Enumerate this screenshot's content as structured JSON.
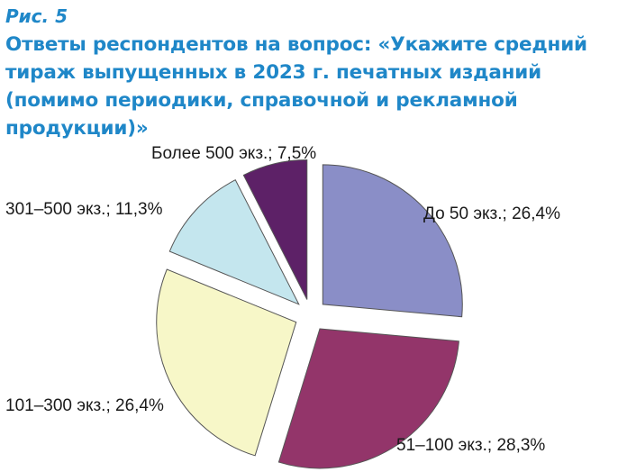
{
  "figure_label": "Рис. 5",
  "title": "Ответы респондентов на вопрос: «Укажите средний тираж выпущенных в 2023 г. печатных изданий (помимо периодики, справочной и рекламной продукции)»",
  "chart_data": {
    "type": "pie",
    "title": "Ответы респондентов на вопрос: «Укажите средний тираж выпущенных в 2023 г. печатных изданий (помимо периодики, справочной и рекламной продукции)»",
    "slices": [
      {
        "category": "До 50 экз.",
        "value": 26.4,
        "label": "До 50 экз.; 26,4%",
        "color": "#8a8ec7"
      },
      {
        "category": "51–100 экз.",
        "value": 28.3,
        "label": "51–100 экз.; 28,3%",
        "color": "#93356a"
      },
      {
        "category": "101–300 экз.",
        "value": 26.4,
        "label": "101–300 экз.; 26,4%",
        "color": "#f7f7c8"
      },
      {
        "category": "301–500 экз.",
        "value": 11.3,
        "label": "301–500 экз.; 11,3%",
        "color": "#c4e6ee"
      },
      {
        "category": "Более 500 экз.",
        "value": 7.5,
        "label": "Более 500 экз.; 7,5%",
        "color": "#5d2167"
      }
    ],
    "legend": "none",
    "exploded": true
  }
}
